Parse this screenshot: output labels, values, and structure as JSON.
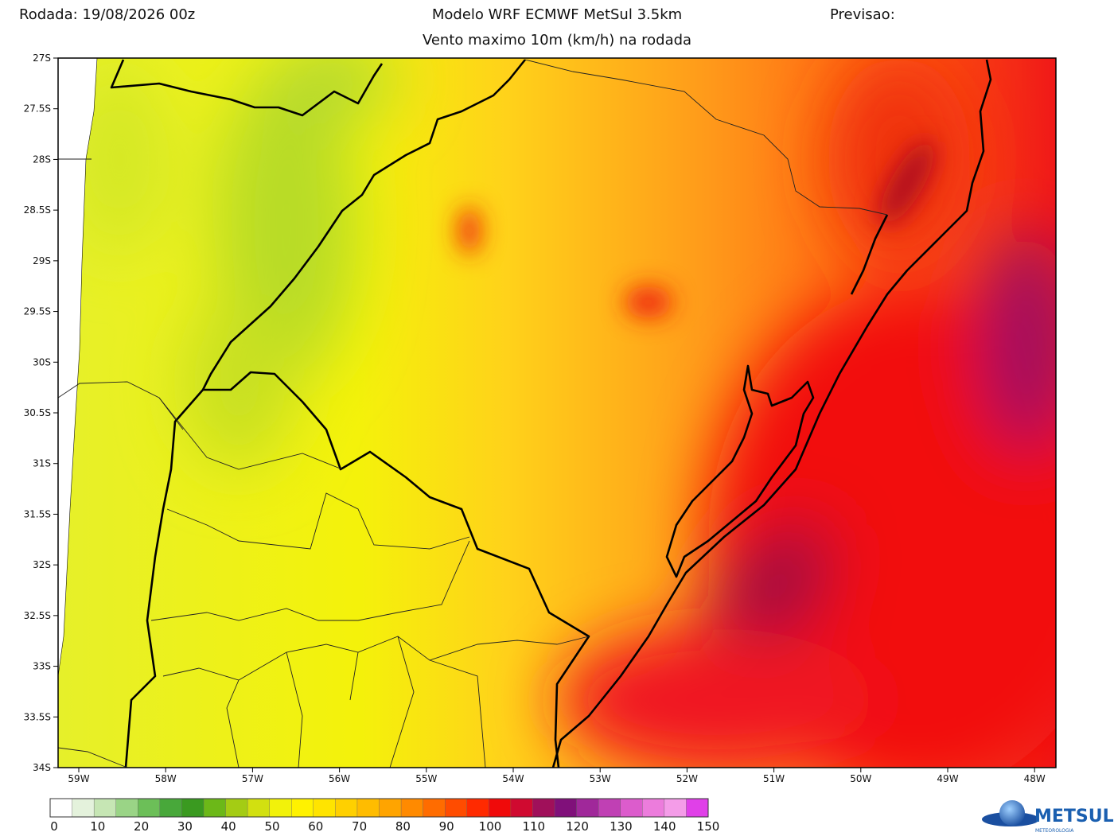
{
  "header": {
    "run": "Rodada: 19/08/2026 00z",
    "model": "Modelo WRF ECMWF MetSul 3.5km",
    "forecast": "Previsao:",
    "subtitle": "Vento maximo 10m (km/h) na rodada"
  },
  "map": {
    "lat_labels": [
      "27S",
      "27.5S",
      "28S",
      "28.5S",
      "29S",
      "29.5S",
      "30S",
      "30.5S",
      "31S",
      "31.5S",
      "32S",
      "32.5S",
      "33S",
      "33.5S",
      "34S"
    ],
    "lon_labels": [
      "59W",
      "58W",
      "57W",
      "56W",
      "55W",
      "54W",
      "53W",
      "52W",
      "51W",
      "50W",
      "49W",
      "48W"
    ]
  },
  "colorbar": {
    "labels": [
      "0",
      "10",
      "20",
      "30",
      "40",
      "50",
      "60",
      "70",
      "80",
      "90",
      "100",
      "110",
      "120",
      "130",
      "140",
      "150"
    ]
  },
  "logo": {
    "name": "METSUL",
    "tagline": "METEOROLOGIA"
  }
}
